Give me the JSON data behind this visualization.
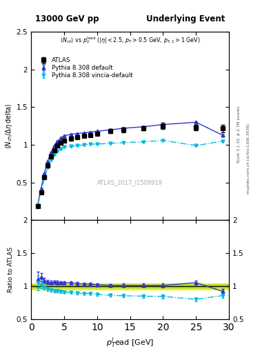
{
  "title_left": "13000 GeV pp",
  "title_right": "Underlying Event",
  "plot_label": "ATLAS_2017_I1509919",
  "rivet_label": "Rivet 3.1.10, ≥ 2.7M events",
  "mcplots_label": "mcplots.cern.ch [arXiv:1306.3436]",
  "atlas_x": [
    1.0,
    1.5,
    2.0,
    2.5,
    3.0,
    3.5,
    4.0,
    4.5,
    5.0,
    6.0,
    7.0,
    8.0,
    9.0,
    10.0,
    12.0,
    14.0,
    17.0,
    20.0,
    25.0,
    29.0
  ],
  "atlas_y": [
    0.19,
    0.37,
    0.57,
    0.73,
    0.85,
    0.93,
    0.99,
    1.03,
    1.06,
    1.08,
    1.1,
    1.12,
    1.13,
    1.15,
    1.18,
    1.2,
    1.22,
    1.25,
    1.23,
    1.22
  ],
  "atlas_yerr": [
    0.02,
    0.02,
    0.02,
    0.02,
    0.02,
    0.02,
    0.02,
    0.02,
    0.02,
    0.02,
    0.02,
    0.02,
    0.02,
    0.02,
    0.02,
    0.03,
    0.03,
    0.04,
    0.04,
    0.05
  ],
  "pythia_default_x": [
    1.0,
    1.5,
    2.0,
    2.5,
    3.0,
    3.5,
    4.0,
    4.5,
    5.0,
    6.0,
    7.0,
    8.0,
    9.0,
    10.0,
    12.0,
    14.0,
    17.0,
    20.0,
    25.0,
    29.0
  ],
  "pythia_default_y": [
    0.21,
    0.42,
    0.62,
    0.78,
    0.9,
    0.99,
    1.05,
    1.09,
    1.12,
    1.14,
    1.15,
    1.16,
    1.17,
    1.18,
    1.2,
    1.22,
    1.24,
    1.27,
    1.3,
    1.13
  ],
  "pythia_default_yerr": [
    0.004,
    0.004,
    0.004,
    0.004,
    0.004,
    0.004,
    0.004,
    0.004,
    0.004,
    0.004,
    0.004,
    0.004,
    0.004,
    0.004,
    0.004,
    0.005,
    0.005,
    0.006,
    0.008,
    0.008
  ],
  "pythia_vincia_x": [
    1.0,
    1.5,
    2.0,
    2.5,
    3.0,
    3.5,
    4.0,
    4.5,
    5.0,
    6.0,
    7.0,
    8.0,
    9.0,
    10.0,
    12.0,
    14.0,
    17.0,
    20.0,
    25.0,
    29.0
  ],
  "pythia_vincia_y": [
    0.2,
    0.38,
    0.56,
    0.7,
    0.8,
    0.87,
    0.92,
    0.95,
    0.97,
    0.98,
    0.99,
    1.0,
    1.01,
    1.01,
    1.02,
    1.03,
    1.04,
    1.06,
    0.99,
    1.05
  ],
  "pythia_vincia_yerr": [
    0.004,
    0.004,
    0.004,
    0.004,
    0.004,
    0.004,
    0.004,
    0.004,
    0.004,
    0.004,
    0.004,
    0.004,
    0.004,
    0.004,
    0.004,
    0.005,
    0.006,
    0.008,
    0.008,
    0.01
  ],
  "atlas_color": "#000000",
  "pythia_default_color": "#3333cc",
  "pythia_vincia_color": "#00bbdd",
  "xlim": [
    0,
    30
  ],
  "ylim_main": [
    0.0,
    2.5
  ],
  "ylim_ratio": [
    0.5,
    2.0
  ],
  "atlas_band_yellow": "#ddee00",
  "atlas_band_green": "#88cc00"
}
